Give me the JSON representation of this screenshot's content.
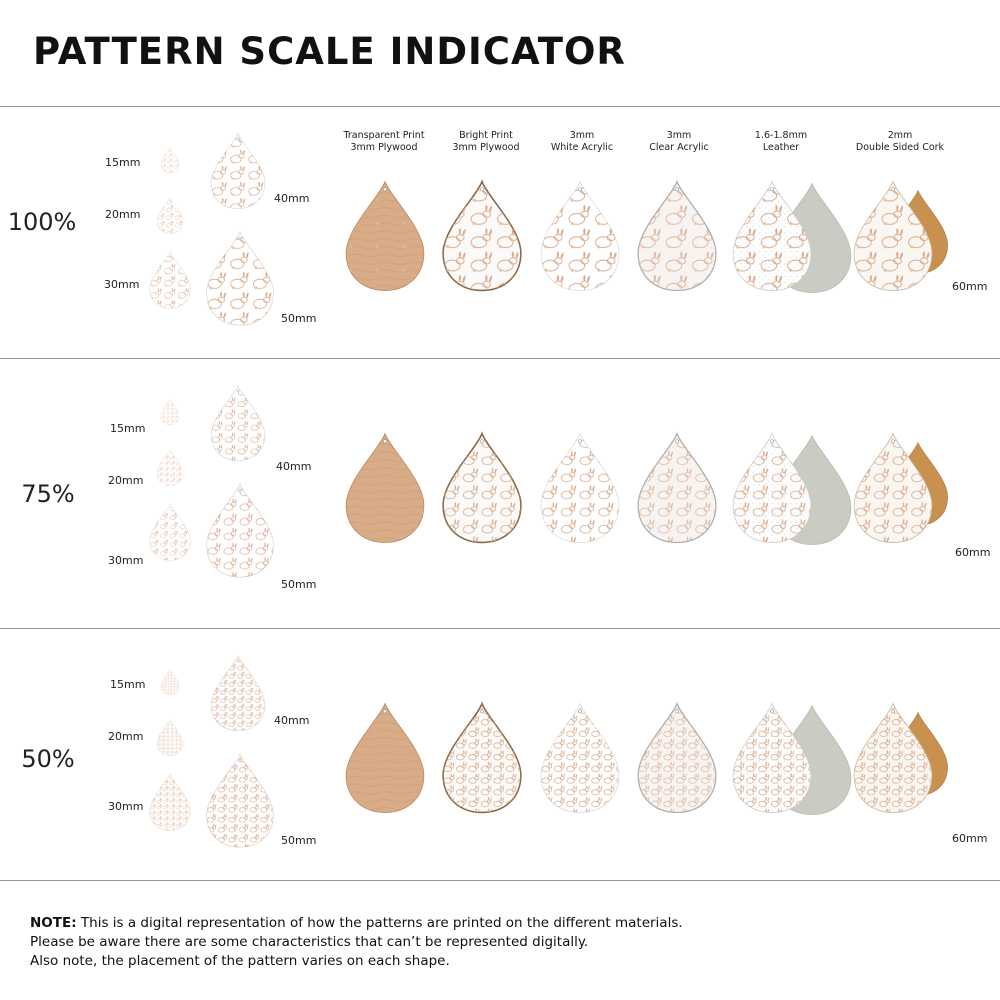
{
  "title": "PATTERN SCALE INDICATOR",
  "materials": [
    {
      "line1": "Transparent Print",
      "line2": "3mm Plywood",
      "kind": "plywood"
    },
    {
      "line1": "Bright Print",
      "line2": "3mm Plywood",
      "kind": "bright"
    },
    {
      "line1": "3mm",
      "line2": "White Acrylic",
      "kind": "white"
    },
    {
      "line1": "3mm",
      "line2": "Clear Acrylic",
      "kind": "clear"
    },
    {
      "line1": "1.6-1.8mm",
      "line2": "Leather",
      "kind": "leather"
    },
    {
      "line1": "2mm",
      "line2": "Double Sided Cork",
      "kind": "cork"
    }
  ],
  "rows": [
    {
      "scale": "100%",
      "sizes": [
        "15mm",
        "20mm",
        "30mm",
        "40mm",
        "50mm"
      ],
      "material_size": "60mm"
    },
    {
      "scale": "75%",
      "sizes": [
        "15mm",
        "20mm",
        "30mm",
        "40mm",
        "50mm"
      ],
      "material_size": "60mm"
    },
    {
      "scale": "50%",
      "sizes": [
        "15mm",
        "20mm",
        "30mm",
        "40mm",
        "50mm"
      ],
      "material_size": "60mm"
    }
  ],
  "note": {
    "label": "NOTE:",
    "line1": " This is a digital representation of how the patterns are printed on the different materials.",
    "line2": "Please be aware there are some characteristics that can’t be represented digitally.",
    "line3": "Also note, the placement of the pattern varies on each shape."
  },
  "colors": {
    "pattern": "#d9a98a",
    "plywood": "#d8ac86",
    "leather_back": "#c9ccc2",
    "cork_back": "#c8914f",
    "divider": "#999999"
  }
}
